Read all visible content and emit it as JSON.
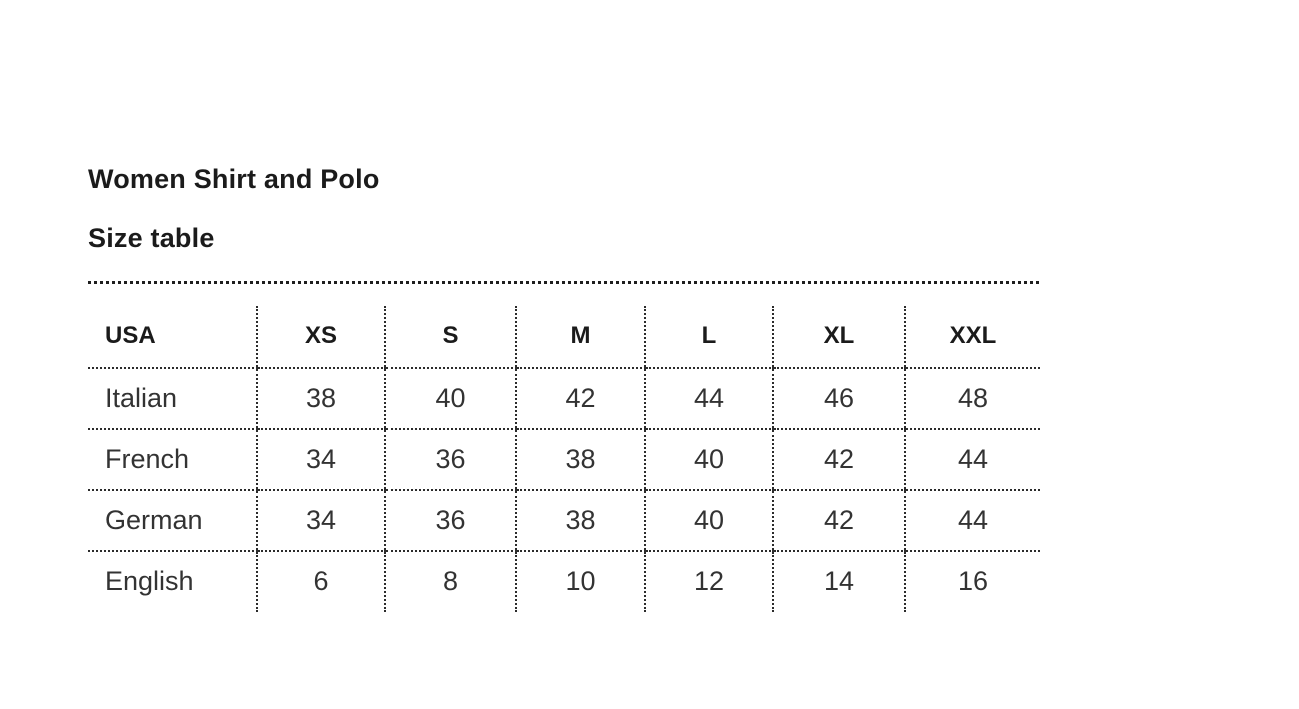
{
  "page": {
    "title": "Women Shirt and Polo",
    "subtitle": "Size table"
  },
  "table": {
    "columns": [
      "USA",
      "XS",
      "S",
      "M",
      "L",
      "XL",
      "XXL"
    ],
    "rows": [
      {
        "label": "Italian",
        "values": [
          "38",
          "40",
          "42",
          "44",
          "46",
          "48"
        ]
      },
      {
        "label": "French",
        "values": [
          "34",
          "36",
          "38",
          "40",
          "42",
          "44"
        ]
      },
      {
        "label": "German",
        "values": [
          "34",
          "36",
          "38",
          "40",
          "42",
          "44"
        ]
      },
      {
        "label": "English",
        "values": [
          "6",
          "8",
          "10",
          "12",
          "14",
          "16"
        ]
      }
    ]
  },
  "colors": {
    "heading_text": "#1b1b1b",
    "body_text": "#333333",
    "divider": "#1e1e1e",
    "background": "#ffffff"
  }
}
